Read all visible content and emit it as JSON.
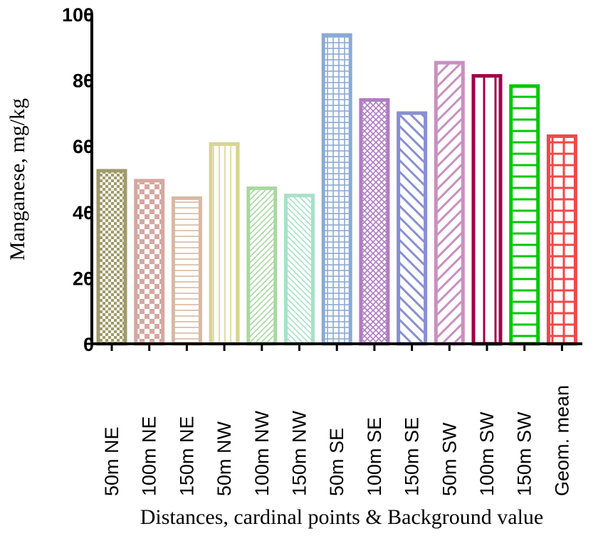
{
  "chart_data": {
    "type": "bar",
    "categories": [
      "50m NE",
      "100m NE",
      "150m NE",
      "50m NW",
      "100m NW",
      "150m NW",
      "50m SE",
      "100m SE",
      "150m SE",
      "50m SW",
      "100m SW",
      "150m SW",
      "Geom. mean"
    ],
    "values": [
      52.5,
      49.5,
      44.2,
      60.6,
      47.2,
      45.0,
      93.7,
      74.0,
      70.0,
      85.3,
      81.3,
      78.2,
      63.0
    ],
    "colors": [
      "#a09a6a",
      "#d4a8a0",
      "#d8b8a0",
      "#d8d490",
      "#a8d8a0",
      "#a8e0c8",
      "#8aaad4",
      "#b07cc4",
      "#8890d0",
      "#c890c0",
      "#a0004a",
      "#00c800",
      "#f04848"
    ],
    "patterns": [
      "checker-small",
      "checker-large",
      "horizontal",
      "vertical",
      "diagonal",
      "diagonal-back",
      "grid",
      "crosshatch",
      "diagonal-back-wide",
      "diagonal-wide",
      "vertical-wide",
      "horizontal-wide",
      "grid-wide"
    ],
    "xlabel": "Distances, cardinal points & Background value",
    "ylabel": "Manganese, mg/kg",
    "ylim": [
      0,
      100
    ],
    "yticks": [
      "0",
      "20",
      "40",
      "60",
      "80",
      "100"
    ],
    "grid": false
  }
}
